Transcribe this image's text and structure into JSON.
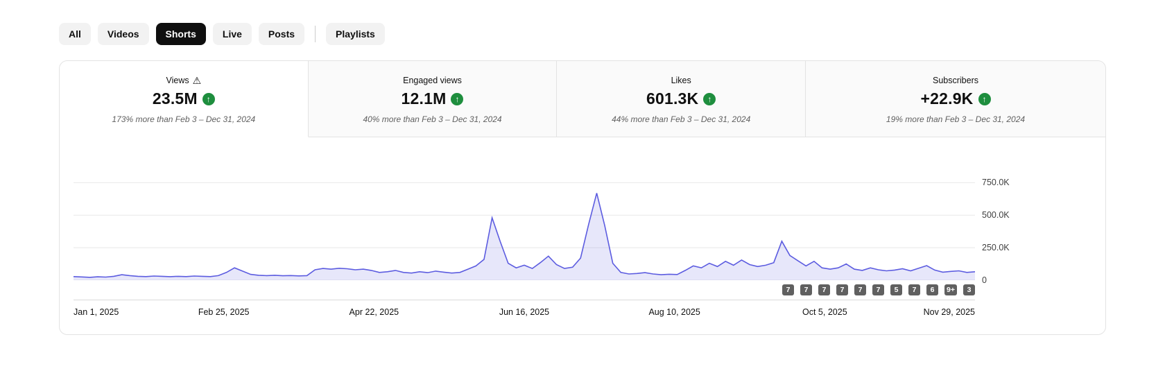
{
  "colors": {
    "trend_up": "#1e8e3e",
    "chip_active_bg": "#0f0f0f",
    "chip_bg": "#f2f2f2"
  },
  "filter_chips": [
    {
      "label": "All",
      "active": false,
      "separator_before": false
    },
    {
      "label": "Videos",
      "active": false,
      "separator_before": false
    },
    {
      "label": "Shorts",
      "active": true,
      "separator_before": false
    },
    {
      "label": "Live",
      "active": false,
      "separator_before": false
    },
    {
      "label": "Posts",
      "active": false,
      "separator_before": false
    },
    {
      "label": "Playlists",
      "active": false,
      "separator_before": true
    }
  ],
  "metric_cards": [
    {
      "label": "Views",
      "has_warning": true,
      "value": "23.5M",
      "trend": "up",
      "subtitle": "173% more than Feb 3 – Dec 31, 2024",
      "selected": true
    },
    {
      "label": "Engaged views",
      "has_warning": false,
      "value": "12.1M",
      "trend": "up",
      "subtitle": "40% more than Feb 3 – Dec 31, 2024",
      "selected": false
    },
    {
      "label": "Likes",
      "has_warning": false,
      "value": "601.3K",
      "trend": "up",
      "subtitle": "44% more than Feb 3 – Dec 31, 2024",
      "selected": false
    },
    {
      "label": "Subscribers",
      "has_warning": false,
      "value": "+22.9K",
      "trend": "up",
      "subtitle": "19% more than Feb 3 – Dec 31, 2024",
      "selected": false
    }
  ],
  "chart_data": {
    "type": "line",
    "series_name": "Views",
    "unit": "views, thousands (K)",
    "x_tick_labels": [
      "Jan 1, 2025",
      "Feb 25, 2025",
      "Apr 22, 2025",
      "Jun 16, 2025",
      "Aug 10, 2025",
      "Oct 5, 2025",
      "Nov 29, 2025"
    ],
    "y_ticks": [
      {
        "value_k": 750,
        "label": "750.0K"
      },
      {
        "value_k": 500,
        "label": "500.0K"
      },
      {
        "value_k": 250,
        "label": "250.0K"
      },
      {
        "value_k": 0,
        "label": "0"
      }
    ],
    "ymax_k": 800,
    "grid": true,
    "legend": false,
    "values_k": [
      28,
      25,
      22,
      26,
      24,
      30,
      42,
      35,
      30,
      28,
      32,
      30,
      27,
      30,
      28,
      32,
      30,
      28,
      35,
      60,
      95,
      70,
      45,
      38,
      35,
      38,
      34,
      36,
      33,
      35,
      80,
      90,
      85,
      92,
      88,
      80,
      85,
      75,
      60,
      65,
      75,
      60,
      55,
      65,
      58,
      70,
      62,
      55,
      60,
      85,
      110,
      160,
      480,
      300,
      130,
      95,
      115,
      90,
      135,
      185,
      120,
      90,
      100,
      170,
      430,
      670,
      420,
      130,
      60,
      48,
      52,
      58,
      48,
      42,
      46,
      44,
      75,
      110,
      95,
      130,
      105,
      145,
      115,
      155,
      120,
      105,
      115,
      135,
      300,
      190,
      150,
      110,
      145,
      95,
      85,
      95,
      125,
      85,
      75,
      95,
      80,
      72,
      78,
      88,
      72,
      92,
      112,
      78,
      62,
      68,
      72,
      60,
      65
    ],
    "upload_count_badges": [
      "7",
      "7",
      "7",
      "7",
      "7",
      "7",
      "5",
      "7",
      "6",
      "9+",
      "3"
    ],
    "line_color": "#5c5ce0",
    "fill_color": "rgba(92,92,224,0.15)",
    "grid_color": "#e8e8e8"
  }
}
